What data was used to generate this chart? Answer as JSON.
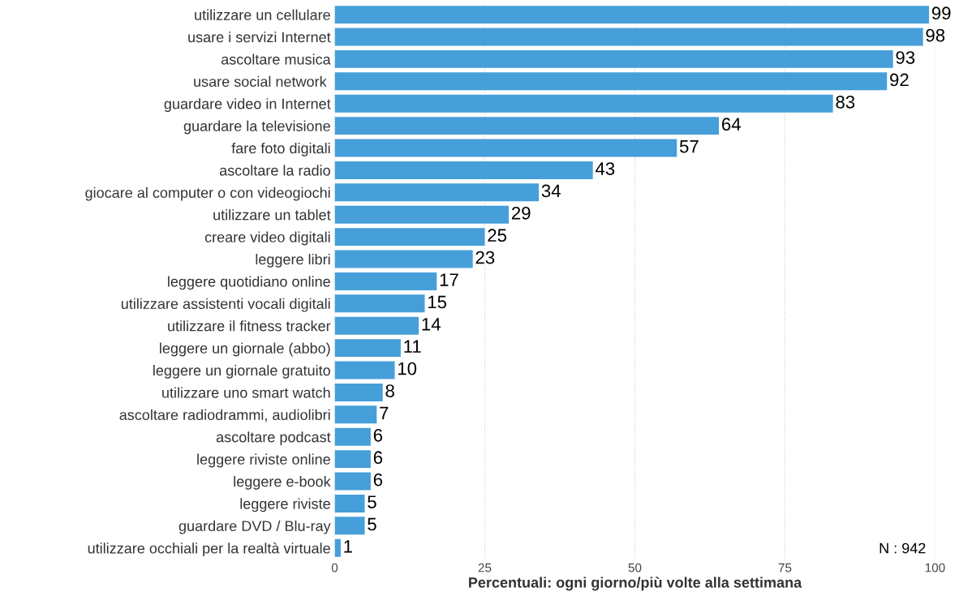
{
  "chart_data": {
    "type": "bar",
    "orientation": "horizontal",
    "categories": [
      "utilizzare un cellulare",
      "usare i servizi Internet",
      "ascoltare musica",
      "usare social network ",
      "guardare video in Internet",
      "guardare la televisione",
      "fare foto digitali",
      "ascoltare la radio",
      "giocare al computer o con videogiochi",
      "utilizzare un tablet",
      "creare video digitali",
      "leggere libri",
      "leggere quotidiano online",
      "utilizzare assistenti vocali digitali",
      "utilizzare il fitness tracker",
      "leggere un giornale (abbo)",
      "leggere un giornale gratuito",
      "utilizzare uno smart watch",
      "ascoltare radiodrammi, audiolibri",
      "ascoltare podcast",
      "leggere riviste online",
      "leggere e-book",
      "leggere riviste",
      "guardare DVD / Blu-ray",
      "utilizzare occhiali per la realtà virtuale"
    ],
    "values": [
      99,
      98,
      93,
      92,
      83,
      64,
      57,
      43,
      34,
      29,
      25,
      23,
      17,
      15,
      14,
      11,
      10,
      8,
      7,
      6,
      6,
      6,
      5,
      5,
      1
    ],
    "color": "#469fd9",
    "data_labels": true,
    "xlabel": "Percentuali: ogni giorno/più volte alla settimana",
    "xlim": [
      0,
      100
    ],
    "xticks": [
      0,
      25,
      50,
      75,
      100
    ],
    "grid": "x",
    "annotations": [
      "N : 942"
    ]
  }
}
